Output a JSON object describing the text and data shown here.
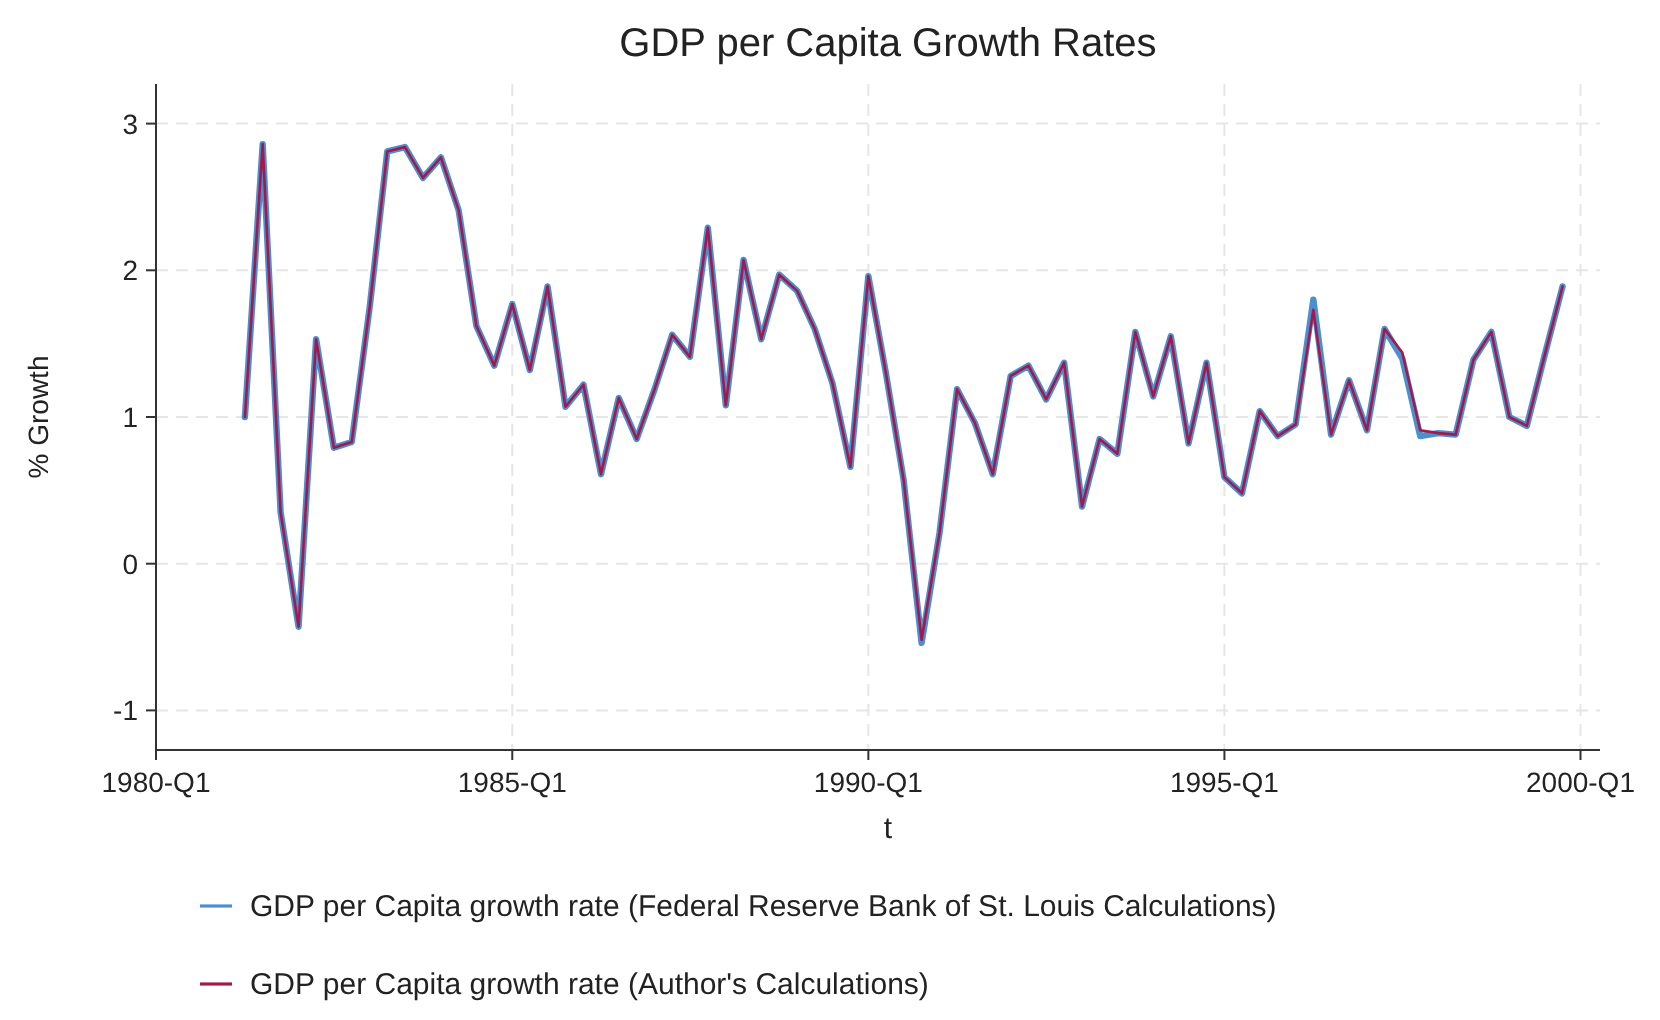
{
  "chart_data": {
    "type": "line",
    "title": "GDP per Capita Growth Rates",
    "xlabel": "t",
    "ylabel": "% Growth",
    "x": [
      "1981-04",
      "1981-07",
      "1981-10",
      "1982-01",
      "1982-04",
      "1982-07",
      "1982-10",
      "1983-01",
      "1983-04",
      "1983-07",
      "1983-10",
      "1984-01",
      "1984-04",
      "1984-07",
      "1984-10",
      "1985-01",
      "1985-04",
      "1985-07",
      "1985-10",
      "1986-01",
      "1986-04",
      "1986-07",
      "1986-10",
      "1987-01",
      "1987-04",
      "1987-07",
      "1987-10",
      "1988-01",
      "1988-04",
      "1988-07",
      "1988-10",
      "1989-01",
      "1989-04",
      "1989-07",
      "1989-10",
      "1990-01",
      "1990-04",
      "1990-07",
      "1990-10",
      "1991-01",
      "1991-04",
      "1991-07",
      "1991-10",
      "1992-01",
      "1992-04",
      "1992-07",
      "1992-10",
      "1993-01",
      "1993-04",
      "1993-07",
      "1993-10",
      "1994-01",
      "1994-04",
      "1994-07",
      "1994-10",
      "1995-01",
      "1995-04",
      "1995-07",
      "1995-10",
      "1996-01",
      "1996-04",
      "1996-07",
      "1996-10",
      "1997-01",
      "1997-04",
      "1997-07",
      "1997-10",
      "1998-01",
      "1998-04",
      "1998-07",
      "1998-10",
      "1999-01",
      "1999-04",
      "1999-07",
      "1999-10"
    ],
    "series": [
      {
        "name": "GDP per Capita growth rate (Federal Reserve Bank of St. Louis Calculations)",
        "color": "#4a8fd0",
        "values": [
          1.0,
          2.86,
          0.35,
          -0.43,
          1.53,
          0.79,
          0.83,
          1.75,
          2.81,
          2.84,
          2.63,
          2.77,
          2.41,
          1.62,
          1.35,
          1.77,
          1.32,
          1.89,
          1.07,
          1.22,
          0.61,
          1.13,
          0.85,
          1.19,
          1.56,
          1.41,
          2.29,
          1.08,
          2.07,
          1.53,
          1.97,
          1.86,
          1.6,
          1.23,
          0.66,
          1.96,
          1.3,
          0.57,
          -0.54,
          0.21,
          1.19,
          0.96,
          0.61,
          1.28,
          1.35,
          1.12,
          1.37,
          0.39,
          0.85,
          0.75,
          1.58,
          1.14,
          1.55,
          0.82,
          1.37,
          0.59,
          0.48,
          1.04,
          0.87,
          0.95,
          1.8,
          0.88,
          1.25,
          0.91,
          1.6,
          1.4,
          0.87,
          0.89,
          0.88,
          1.39,
          1.58,
          1.0,
          0.94,
          1.42,
          1.89
        ]
      },
      {
        "name": "GDP per Capita growth rate (Author's Calculations)",
        "color": "#a3194b",
        "values": [
          1.0,
          2.86,
          0.35,
          -0.43,
          1.53,
          0.79,
          0.83,
          1.75,
          2.81,
          2.84,
          2.63,
          2.77,
          2.41,
          1.62,
          1.35,
          1.77,
          1.32,
          1.89,
          1.07,
          1.22,
          0.61,
          1.13,
          0.85,
          1.19,
          1.56,
          1.41,
          2.29,
          1.08,
          2.07,
          1.53,
          1.97,
          1.86,
          1.6,
          1.23,
          0.66,
          1.96,
          1.3,
          0.57,
          -0.52,
          0.21,
          1.19,
          0.96,
          0.61,
          1.28,
          1.35,
          1.12,
          1.37,
          0.39,
          0.85,
          0.75,
          1.58,
          1.14,
          1.55,
          0.82,
          1.37,
          0.59,
          0.48,
          1.04,
          0.87,
          0.95,
          1.73,
          0.88,
          1.25,
          0.91,
          1.6,
          1.44,
          0.91,
          0.89,
          0.88,
          1.39,
          1.58,
          1.0,
          0.94,
          1.42,
          1.89
        ]
      }
    ],
    "xlim": [
      "1980-01",
      "2000-04-10"
    ],
    "ylim": [
      -1.27,
      3.27
    ],
    "xticks": [
      {
        "value": "1980-01",
        "label": "1980-Q1"
      },
      {
        "value": "1985-01",
        "label": "1985-Q1"
      },
      {
        "value": "1990-01",
        "label": "1990-Q1"
      },
      {
        "value": "1995-01",
        "label": "1995-Q1"
      },
      {
        "value": "2000-01",
        "label": "2000-Q1"
      }
    ],
    "yticks": [
      -1,
      0,
      1,
      2,
      3
    ],
    "grid": true,
    "legend": "bottom",
    "marker": "none",
    "line_style": "solid"
  }
}
